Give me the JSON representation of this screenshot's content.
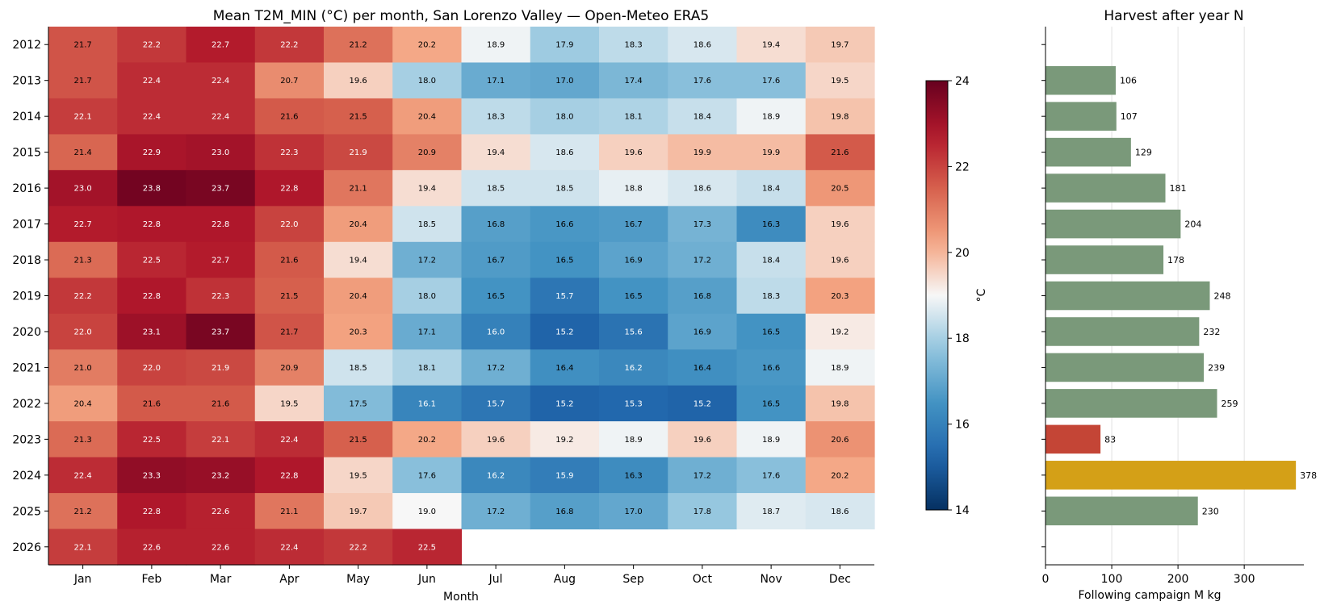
{
  "chart_data": [
    {
      "type": "heatmap",
      "title": "Mean T2M_MIN (°C) per month, San Lorenzo Valley — Open-Meteo ERA5",
      "xlabel": "Month",
      "ylabel": "",
      "x": [
        "Jan",
        "Feb",
        "Mar",
        "Apr",
        "May",
        "Jun",
        "Jul",
        "Aug",
        "Sep",
        "Oct",
        "Nov",
        "Dec"
      ],
      "y": [
        "2012",
        "2013",
        "2014",
        "2015",
        "2016",
        "2017",
        "2018",
        "2019",
        "2020",
        "2021",
        "2022",
        "2023",
        "2024",
        "2025",
        "2026"
      ],
      "values": [
        [
          21.7,
          22.2,
          22.7,
          22.2,
          21.2,
          20.2,
          18.9,
          17.9,
          18.3,
          18.6,
          19.4,
          19.7
        ],
        [
          21.7,
          22.4,
          22.4,
          20.7,
          19.6,
          18.0,
          17.1,
          17.0,
          17.4,
          17.6,
          17.6,
          19.5
        ],
        [
          22.1,
          22.4,
          22.4,
          21.6,
          21.5,
          20.4,
          18.3,
          18.0,
          18.1,
          18.4,
          18.9,
          19.8
        ],
        [
          21.4,
          22.9,
          23.0,
          22.3,
          21.9,
          20.9,
          19.4,
          18.6,
          19.6,
          19.9,
          19.9,
          21.6
        ],
        [
          23.0,
          23.8,
          23.7,
          22.8,
          21.1,
          19.4,
          18.5,
          18.5,
          18.8,
          18.6,
          18.4,
          20.5
        ],
        [
          22.7,
          22.8,
          22.8,
          22.0,
          20.4,
          18.5,
          16.8,
          16.6,
          16.7,
          17.3,
          16.3,
          19.6
        ],
        [
          21.3,
          22.5,
          22.7,
          21.6,
          19.4,
          17.2,
          16.7,
          16.5,
          16.9,
          17.2,
          18.4,
          19.6
        ],
        [
          22.2,
          22.8,
          22.3,
          21.5,
          20.4,
          18.0,
          16.5,
          15.7,
          16.5,
          16.8,
          18.3,
          20.3
        ],
        [
          22.0,
          23.1,
          23.7,
          21.7,
          20.3,
          17.1,
          16.0,
          15.2,
          15.6,
          16.9,
          16.5,
          19.2
        ],
        [
          21.0,
          22.0,
          21.9,
          20.9,
          18.5,
          18.1,
          17.2,
          16.4,
          16.2,
          16.4,
          16.6,
          18.9
        ],
        [
          20.4,
          21.6,
          21.6,
          19.5,
          17.5,
          16.1,
          15.7,
          15.2,
          15.3,
          15.2,
          16.5,
          19.8
        ],
        [
          21.3,
          22.5,
          22.1,
          22.4,
          21.5,
          20.2,
          19.6,
          19.2,
          18.9,
          19.6,
          18.9,
          20.6
        ],
        [
          22.4,
          23.3,
          23.2,
          22.8,
          19.5,
          17.6,
          16.2,
          15.9,
          16.3,
          17.2,
          17.6,
          20.2
        ],
        [
          21.2,
          22.8,
          22.6,
          21.1,
          19.7,
          19.0,
          17.2,
          16.8,
          17.0,
          17.8,
          18.7,
          18.6
        ],
        [
          22.1,
          22.6,
          22.6,
          22.4,
          22.2,
          22.5,
          null,
          null,
          null,
          null,
          null,
          null
        ]
      ],
      "colorbar": {
        "label": "°C",
        "range": [
          14,
          24
        ],
        "ticks": [
          "14",
          "16",
          "18",
          "20",
          "22",
          "24"
        ],
        "colormap": "RdBu_r"
      }
    },
    {
      "type": "bar",
      "orientation": "horizontal",
      "title": "Harvest after year N",
      "xlabel": "Following campaign M kg",
      "ylabel": "",
      "xlim": [
        0,
        390
      ],
      "xticks": [
        "0",
        "100",
        "200",
        "300"
      ],
      "categories": [
        "2012",
        "2013",
        "2014",
        "2015",
        "2016",
        "2017",
        "2018",
        "2019",
        "2020",
        "2021",
        "2022",
        "2023",
        "2024",
        "2025",
        "2026"
      ],
      "values": [
        null,
        106,
        107,
        129,
        181,
        204,
        178,
        248,
        232,
        239,
        259,
        83,
        378,
        230,
        null
      ],
      "value_labels": [
        "",
        "106",
        "107",
        "129",
        "181",
        "204",
        "178",
        "248",
        "232",
        "239",
        "259",
        "83",
        "378",
        "230",
        ""
      ],
      "bar_colors": [
        "#7a997a",
        "#7a997a",
        "#7a997a",
        "#7a997a",
        "#7a997a",
        "#7a997a",
        "#7a997a",
        "#7a997a",
        "#7a997a",
        "#7a997a",
        "#7a997a",
        "#c44536",
        "#d4a017",
        "#7a997a",
        "#7a997a"
      ],
      "grid": "vertical"
    }
  ]
}
